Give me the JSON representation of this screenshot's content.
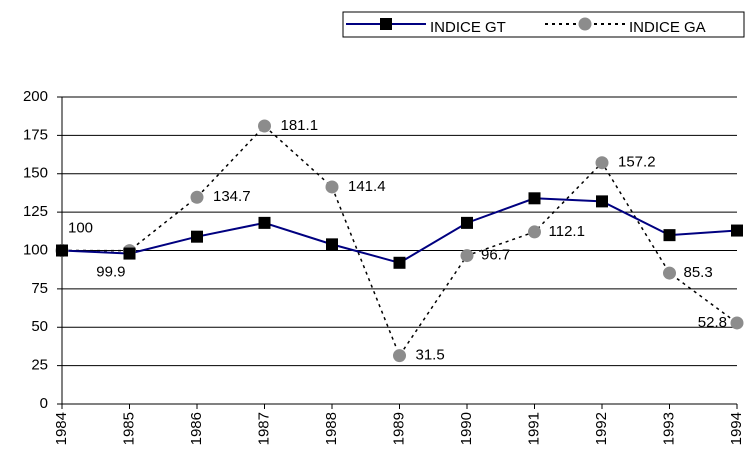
{
  "chart_data": {
    "type": "line",
    "categories": [
      "1984",
      "1985",
      "1986",
      "1987",
      "1988",
      "1989",
      "1990",
      "1991",
      "1992",
      "1993",
      "1994"
    ],
    "series": [
      {
        "name": "INDICE GT",
        "color": "#000080",
        "marker": "square",
        "marker_color": "#000000",
        "dash": "solid",
        "values": [
          100,
          98,
          109,
          118,
          104,
          92,
          118,
          134,
          132,
          110,
          113
        ]
      },
      {
        "name": "INDICE GA",
        "color": "#000000",
        "marker": "circle",
        "marker_color": "#8c8c8c",
        "dash": "dotted",
        "values": [
          100,
          99.9,
          134.7,
          181.1,
          141.4,
          31.5,
          96.7,
          112.1,
          157.2,
          85.3,
          52.8
        ],
        "data_labels": true
      }
    ],
    "ylim": [
      0,
      200
    ],
    "yticks": [
      0,
      25,
      50,
      75,
      100,
      125,
      150,
      175,
      200
    ],
    "grid": true,
    "legend": "top-right"
  }
}
